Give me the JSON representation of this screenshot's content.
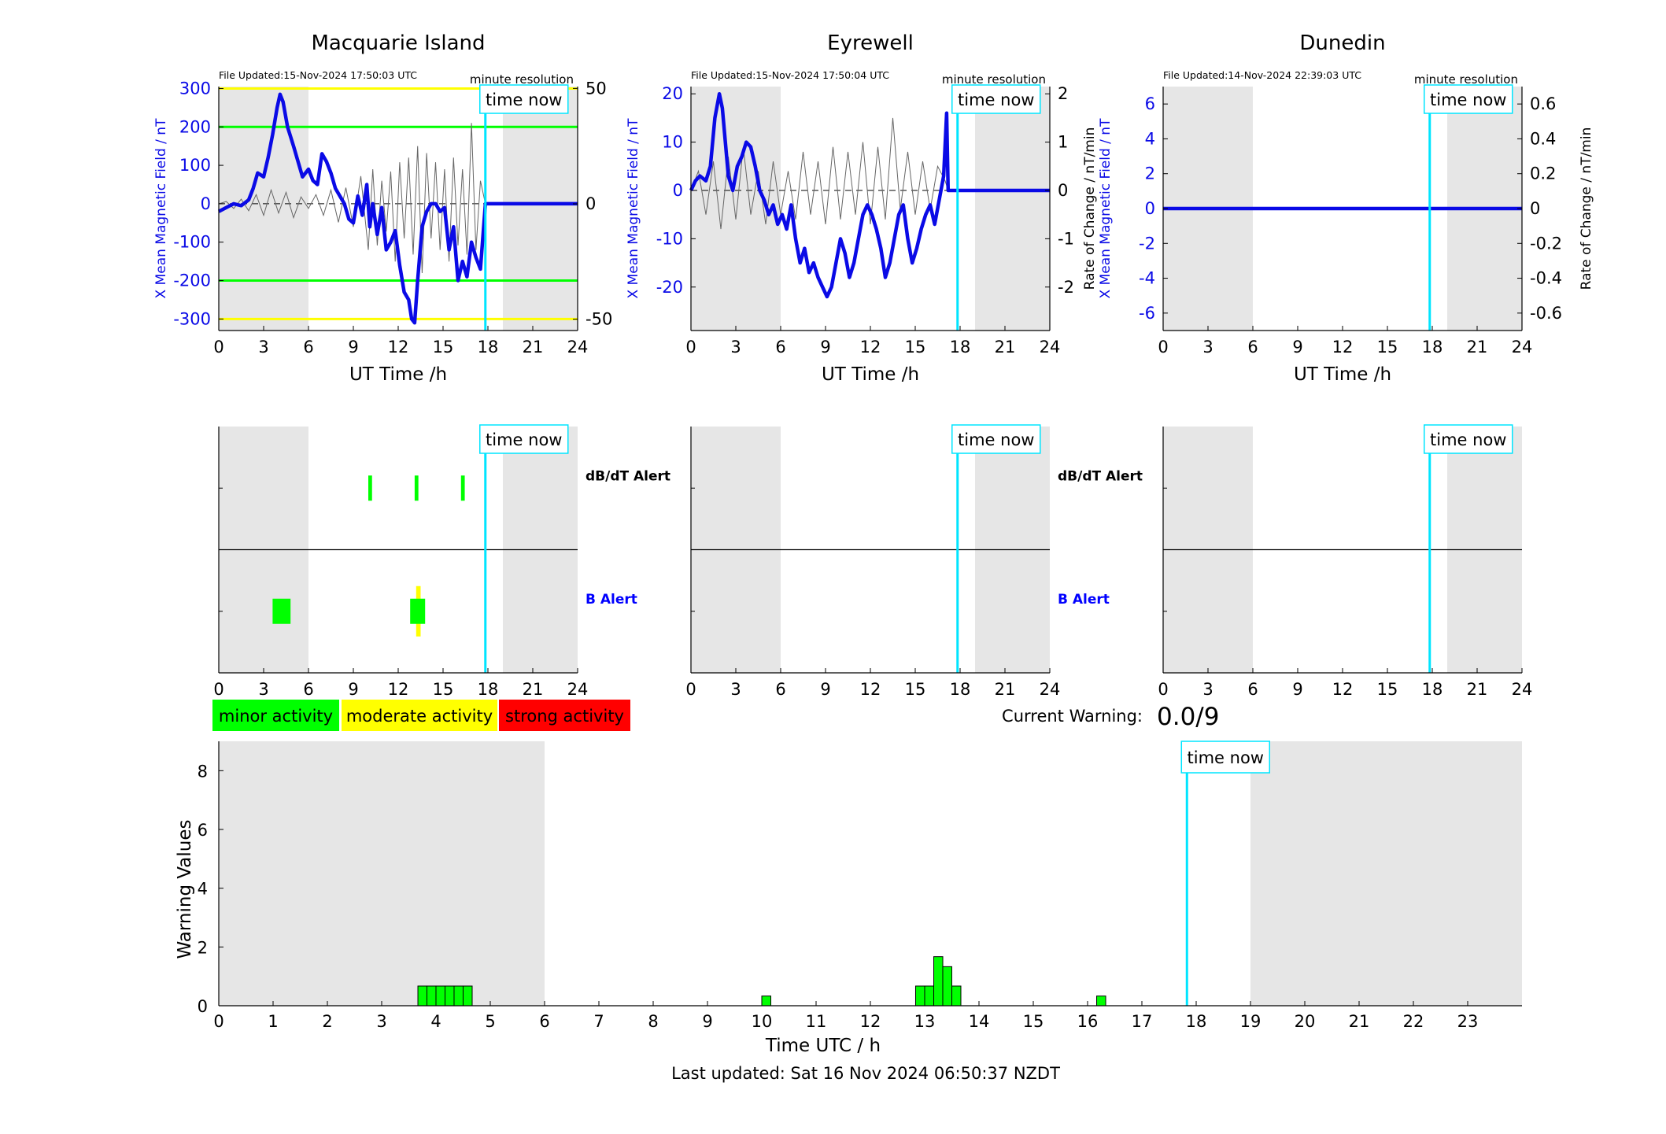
{
  "colors": {
    "magnetic": "#0a0ae6",
    "rate": "#666666",
    "now_line": "#00e5ff",
    "shade": "#e6e6e6",
    "minor": "#00ff00",
    "moderate": "#ffff00",
    "strong": "#ff0000",
    "alert_b_label": "#0000ff"
  },
  "legend": {
    "minor": "minor activity",
    "moderate": "moderate activity",
    "strong": "strong activity"
  },
  "current_warning": {
    "label": "Current Warning:",
    "value": "0.0/9"
  },
  "footer": {
    "last_updated": "Last updated: Sat 16 Nov 2024 06:50:37 NZDT"
  },
  "chart_data": [
    {
      "type": "line",
      "title": "Macquarie Island",
      "file_updated": "File Updated:15-Nov-2024 17:50:03 UTC",
      "resolution": "minute resolution",
      "now_label": "time now",
      "time_now_h": 17.83,
      "night_shade_h": [
        [
          0,
          6
        ],
        [
          19,
          24
        ]
      ],
      "xlabel": "UT Time /h",
      "ylabel_left": "X Mean Magnetic Field / nT",
      "ylabel_right": "",
      "xticks": [
        "0",
        "3",
        "6",
        "9",
        "12",
        "15",
        "18",
        "21",
        "24"
      ],
      "xlim": [
        0,
        24
      ],
      "ylim_left": [
        -330,
        305
      ],
      "ylim_right": [
        -54.9,
        50.8
      ],
      "yticks_left": [
        300,
        200,
        100,
        0,
        -100,
        -200,
        -300
      ],
      "yticks_right": [
        50,
        0,
        -50
      ],
      "threshold_lines": [
        {
          "value": 300,
          "color": "#ffff00"
        },
        {
          "value": 200,
          "color": "#00ff00"
        },
        {
          "value": -200,
          "color": "#00ff00"
        },
        {
          "value": -300,
          "color": "#ffff00"
        }
      ],
      "series": [
        {
          "role": "magnetic",
          "x": [
            0,
            0.5,
            1,
            1.5,
            2,
            2.3,
            2.6,
            3,
            3.3,
            3.6,
            3.9,
            4.1,
            4.3,
            4.6,
            5,
            5.3,
            5.6,
            6,
            6.3,
            6.6,
            6.9,
            7.2,
            7.5,
            7.8,
            8.1,
            8.4,
            8.7,
            9,
            9.3,
            9.6,
            9.9,
            10.1,
            10.3,
            10.6,
            10.9,
            11.2,
            11.5,
            11.8,
            12.1,
            12.4,
            12.7,
            12.9,
            13.1,
            13.3,
            13.6,
            13.9,
            14.2,
            14.5,
            14.8,
            15.1,
            15.4,
            15.7,
            16,
            16.3,
            16.6,
            16.9,
            17.2,
            17.5,
            17.83,
            18,
            20,
            24
          ],
          "y": [
            -20,
            -10,
            0,
            -5,
            10,
            40,
            80,
            70,
            120,
            180,
            250,
            285,
            265,
            200,
            150,
            110,
            70,
            90,
            60,
            50,
            130,
            110,
            80,
            40,
            20,
            0,
            -40,
            -50,
            20,
            -30,
            50,
            -60,
            0,
            -80,
            -10,
            -120,
            -100,
            -70,
            -160,
            -230,
            -250,
            -300,
            -310,
            -200,
            -60,
            -20,
            0,
            0,
            -20,
            -10,
            -120,
            -60,
            -200,
            -150,
            -190,
            -100,
            -140,
            -170,
            0,
            0,
            0,
            0
          ]
        },
        {
          "role": "rate",
          "x": [
            0,
            0.5,
            1,
            1.5,
            2,
            2.5,
            3,
            3.5,
            4,
            4.5,
            5,
            5.5,
            6,
            6.5,
            7,
            7.5,
            8,
            8.5,
            9,
            9.5,
            10,
            10.3,
            10.6,
            10.9,
            11.2,
            11.5,
            11.8,
            12.1,
            12.4,
            12.7,
            13,
            13.3,
            13.6,
            13.9,
            14.2,
            14.5,
            14.8,
            15.1,
            15.4,
            15.7,
            16,
            16.3,
            16.6,
            16.9,
            17.2,
            17.5,
            17.83
          ],
          "y": [
            0,
            1,
            -2,
            2,
            -3,
            4,
            -5,
            6,
            -4,
            5,
            -6,
            3,
            -2,
            4,
            -5,
            6,
            -8,
            7,
            -10,
            12,
            -20,
            15,
            -18,
            10,
            -12,
            14,
            -25,
            18,
            -15,
            20,
            -22,
            25,
            -30,
            22,
            -15,
            18,
            -20,
            15,
            -25,
            20,
            -18,
            15,
            -22,
            35,
            -20,
            10,
            0
          ]
        }
      ]
    },
    {
      "type": "line",
      "title": "Eyrewell",
      "file_updated": "File Updated:15-Nov-2024 17:50:04 UTC",
      "resolution": "minute resolution",
      "now_label": "time now",
      "time_now_h": 17.83,
      "night_shade_h": [
        [
          0,
          6
        ],
        [
          19,
          24
        ]
      ],
      "xlabel": "UT Time /h",
      "ylabel_left": "X Mean Magnetic Field / nT",
      "ylabel_right": "Rate of Change / nT/min",
      "xticks": [
        "0",
        "3",
        "6",
        "9",
        "12",
        "15",
        "18",
        "21",
        "24"
      ],
      "xlim": [
        0,
        24
      ],
      "ylim_left": [
        -29,
        21.5
      ],
      "ylim_right": [
        -2.9,
        2.15
      ],
      "yticks_left": [
        20,
        10,
        0,
        -10,
        -20
      ],
      "yticks_right": [
        2,
        1,
        0,
        -1,
        -2
      ],
      "series": [
        {
          "role": "magnetic",
          "x": [
            0,
            0.3,
            0.6,
            1,
            1.3,
            1.6,
            1.9,
            2.1,
            2.3,
            2.5,
            2.8,
            3.1,
            3.4,
            3.7,
            4,
            4.3,
            4.6,
            4.9,
            5.2,
            5.5,
            5.8,
            6.1,
            6.4,
            6.7,
            7,
            7.3,
            7.6,
            7.9,
            8.2,
            8.5,
            8.8,
            9.1,
            9.4,
            9.7,
            10,
            10.3,
            10.6,
            10.9,
            11.2,
            11.5,
            11.8,
            12.1,
            12.4,
            12.7,
            13,
            13.3,
            13.6,
            13.9,
            14.2,
            14.5,
            14.8,
            15.1,
            15.4,
            15.7,
            16,
            16.3,
            16.6,
            16.9,
            17.1,
            17.2,
            17.83,
            24
          ],
          "y": [
            0,
            2,
            3,
            2,
            5,
            15,
            20,
            17,
            10,
            3,
            0,
            5,
            7,
            10,
            9,
            5,
            0,
            -2,
            -5,
            -3,
            -7,
            -5,
            -8,
            -3,
            -10,
            -15,
            -12,
            -17,
            -15,
            -18,
            -20,
            -22,
            -20,
            -15,
            -10,
            -13,
            -18,
            -15,
            -10,
            -5,
            -3,
            -5,
            -8,
            -12,
            -18,
            -15,
            -10,
            -5,
            -3,
            -10,
            -15,
            -12,
            -8,
            -5,
            -3,
            -7,
            -2,
            3,
            16,
            0,
            0,
            0
          ]
        },
        {
          "role": "rate",
          "x": [
            0,
            0.5,
            1,
            1.5,
            2,
            2.5,
            3,
            3.5,
            4,
            4.5,
            5,
            5.5,
            6,
            6.5,
            7,
            7.5,
            8,
            8.5,
            9,
            9.5,
            10,
            10.5,
            11,
            11.5,
            12,
            12.5,
            13,
            13.5,
            14,
            14.5,
            15,
            15.5,
            16,
            16.5,
            17,
            17.2,
            17.83
          ],
          "y": [
            0,
            0.4,
            -0.5,
            0.6,
            -0.8,
            0.7,
            -0.6,
            0.9,
            -0.5,
            0.4,
            -0.7,
            0.6,
            -0.5,
            0.4,
            -0.6,
            0.8,
            -0.5,
            0.6,
            -0.7,
            0.9,
            -0.6,
            0.8,
            -0.5,
            1.0,
            -0.7,
            0.9,
            -0.6,
            1.5,
            -0.4,
            0.8,
            -0.5,
            0.6,
            -0.4,
            0.5,
            0.2,
            0,
            0
          ]
        }
      ]
    },
    {
      "type": "line",
      "title": "Dunedin",
      "file_updated": "File Updated:14-Nov-2024 22:39:03 UTC",
      "resolution": "minute resolution",
      "now_label": "time now",
      "time_now_h": 17.83,
      "night_shade_h": [
        [
          0,
          6
        ],
        [
          19,
          24
        ]
      ],
      "xlabel": "UT Time /h",
      "ylabel_left": "X Mean Magnetic Field / nT",
      "ylabel_right": "Rate of Change / nT/min",
      "xticks": [
        "0",
        "3",
        "6",
        "9",
        "12",
        "15",
        "18",
        "21",
        "24"
      ],
      "xlim": [
        0,
        24
      ],
      "ylim_left": [
        -7,
        7
      ],
      "ylim_right": [
        -0.7,
        0.7
      ],
      "yticks_left": [
        6,
        4,
        2,
        0,
        -2,
        -4,
        -6
      ],
      "yticks_right": [
        0.6,
        0.4,
        0.2,
        0,
        -0.2,
        -0.4,
        -0.6
      ],
      "series": [
        {
          "role": "magnetic",
          "x": [
            0,
            24
          ],
          "y": [
            0,
            0
          ]
        }
      ]
    },
    {
      "type": "alert",
      "now_label": "time now",
      "time_now_h": 17.83,
      "night_shade_h": [
        [
          0,
          6
        ],
        [
          19,
          24
        ]
      ],
      "xticks": [
        "0",
        "3",
        "6",
        "9",
        "12",
        "15",
        "18",
        "21",
        "24"
      ],
      "xlim": [
        0,
        24
      ],
      "label_dbdt": "dB/dT Alert",
      "label_b": "B Alert",
      "dbdt_events": [
        {
          "start": 10.0,
          "end": 10.25,
          "level": "minor"
        },
        {
          "start": 13.1,
          "end": 13.35,
          "level": "minor"
        },
        {
          "start": 16.2,
          "end": 16.45,
          "level": "minor"
        }
      ],
      "b_events": [
        {
          "start": 3.6,
          "end": 4.8,
          "level": "minor"
        },
        {
          "start": 13.2,
          "end": 13.5,
          "level": "moderate",
          "tall": true
        },
        {
          "start": 12.8,
          "end": 13.8,
          "level": "minor"
        }
      ]
    },
    {
      "type": "alert",
      "now_label": "time now",
      "time_now_h": 17.83,
      "night_shade_h": [
        [
          0,
          6
        ],
        [
          19,
          24
        ]
      ],
      "xticks": [
        "0",
        "3",
        "6",
        "9",
        "12",
        "15",
        "18",
        "21",
        "24"
      ],
      "xlim": [
        0,
        24
      ],
      "label_dbdt": "dB/dT Alert",
      "label_b": "B Alert",
      "dbdt_events": [],
      "b_events": []
    },
    {
      "type": "alert",
      "now_label": "time now",
      "time_now_h": 17.83,
      "night_shade_h": [
        [
          0,
          6
        ],
        [
          19,
          24
        ]
      ],
      "xticks": [
        "0",
        "3",
        "6",
        "9",
        "12",
        "15",
        "18",
        "21",
        "24"
      ],
      "xlim": [
        0,
        24
      ],
      "label_dbdt": "",
      "label_b": "",
      "dbdt_events": [],
      "b_events": []
    },
    {
      "type": "bar",
      "now_label": "time now",
      "time_now_h": 17.83,
      "night_shade_h": [
        [
          0,
          6
        ],
        [
          19,
          24
        ]
      ],
      "xlabel": "Time UTC / h",
      "ylabel": "Warning Values",
      "xlim": [
        0,
        24
      ],
      "ylim": [
        0,
        9
      ],
      "xticks": [
        "0",
        "1",
        "2",
        "3",
        "4",
        "5",
        "6",
        "7",
        "8",
        "9",
        "10",
        "11",
        "12",
        "13",
        "14",
        "15",
        "16",
        "17",
        "18",
        "19",
        "20",
        "21",
        "22",
        "23"
      ],
      "yticks": [
        0,
        2,
        4,
        6,
        8
      ],
      "bar_width_h": 0.1667,
      "bars": [
        {
          "x": 3.667,
          "value": 0.67
        },
        {
          "x": 3.833,
          "value": 0.67
        },
        {
          "x": 4.0,
          "value": 0.67
        },
        {
          "x": 4.167,
          "value": 0.67
        },
        {
          "x": 4.333,
          "value": 0.67
        },
        {
          "x": 4.5,
          "value": 0.67
        },
        {
          "x": 10.0,
          "value": 0.33
        },
        {
          "x": 12.833,
          "value": 0.67
        },
        {
          "x": 13.0,
          "value": 0.67
        },
        {
          "x": 13.167,
          "value": 1.67
        },
        {
          "x": 13.333,
          "value": 1.33
        },
        {
          "x": 13.5,
          "value": 0.67
        },
        {
          "x": 16.167,
          "value": 0.33
        }
      ]
    }
  ]
}
